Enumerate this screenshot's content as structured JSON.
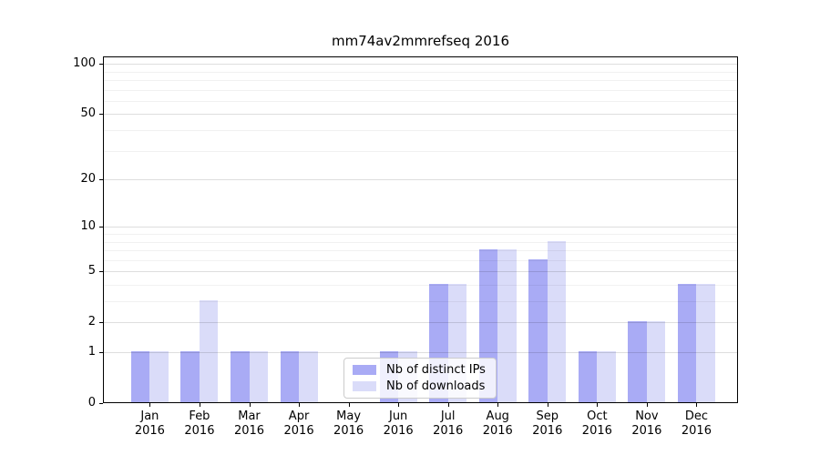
{
  "title": "mm74av2mmrefseq 2016",
  "colors": {
    "ips": "#a9abf5",
    "downloads": "#dadcf9",
    "grid_major": "#d9d9d9",
    "grid_minor": "#efefef",
    "axis": "#000000"
  },
  "legend": {
    "items": [
      {
        "label": "Nb of distinct IPs",
        "series": "ips"
      },
      {
        "label": "Nb of downloads",
        "series": "downloads"
      }
    ]
  },
  "chart_data": {
    "type": "bar",
    "title": "mm74av2mmrefseq 2016",
    "categories": [
      "Jan 2016",
      "Feb 2016",
      "Mar 2016",
      "Apr 2016",
      "May 2016",
      "Jun 2016",
      "Jul 2016",
      "Aug 2016",
      "Sep 2016",
      "Oct 2016",
      "Nov 2016",
      "Dec 2016"
    ],
    "series": [
      {
        "name": "Nb of distinct IPs",
        "color_key": "ips",
        "values": [
          1,
          1,
          1,
          1,
          0,
          1,
          4,
          7,
          6,
          1,
          2,
          4
        ]
      },
      {
        "name": "Nb of downloads",
        "color_key": "downloads",
        "values": [
          1,
          3,
          1,
          1,
          0,
          1,
          4,
          7,
          8,
          1,
          2,
          4
        ]
      }
    ],
    "xlabel": "",
    "ylabel": "",
    "ylim": [
      0,
      100
    ],
    "yscale": "log1p",
    "yticks": [
      0,
      1,
      2,
      5,
      10,
      20,
      50,
      100
    ],
    "yticks_minor": [
      3,
      4,
      6,
      7,
      8,
      9,
      30,
      40,
      60,
      70,
      80,
      90
    ],
    "grid": true,
    "legend_position": "lower-center-inside"
  }
}
